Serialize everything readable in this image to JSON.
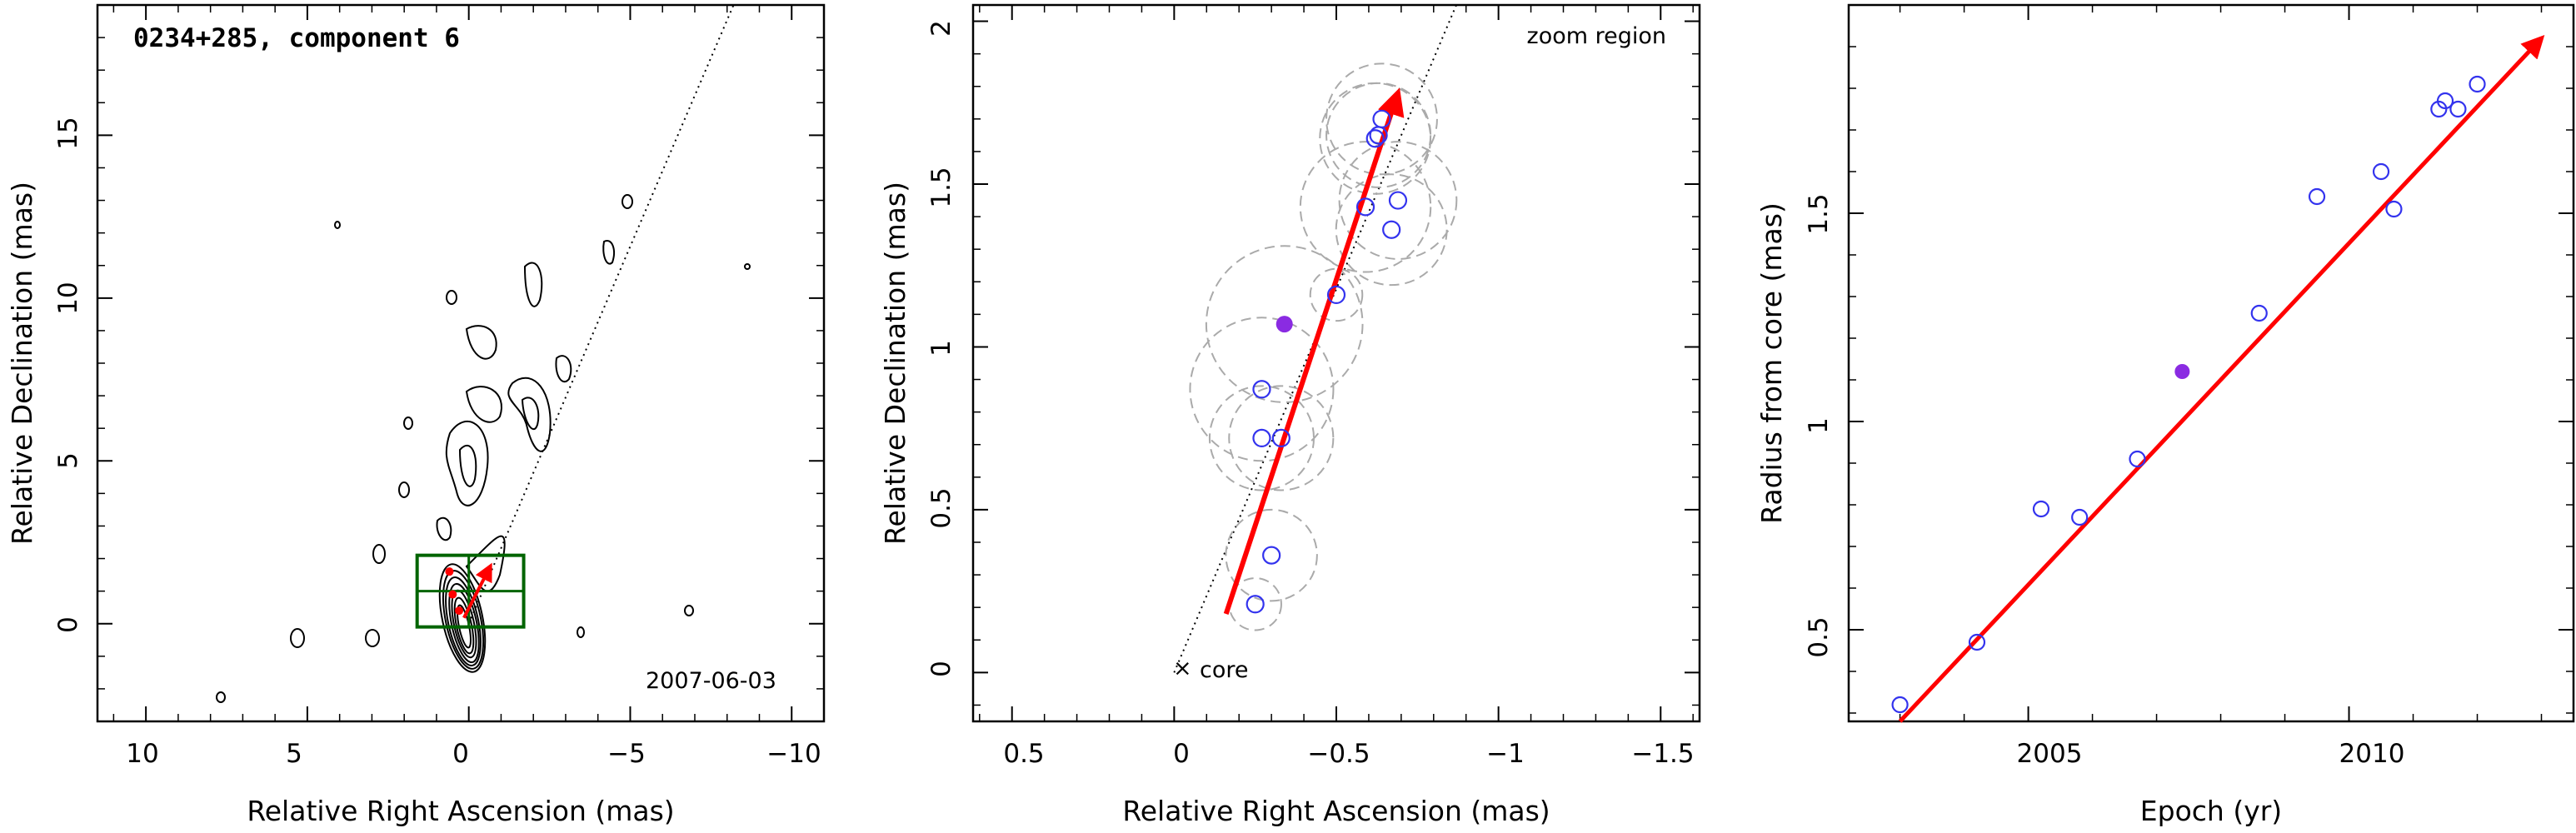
{
  "chart_data": [
    {
      "type": "scatter",
      "title": "0234+285, component 6",
      "date_label": "2007-06-03",
      "xlabel": "Relative Right Ascension (mas)",
      "ylabel": "Relative Declination (mas)",
      "xlim": [
        11.5,
        -11
      ],
      "ylim": [
        -3,
        19
      ],
      "x_ticks": [
        "10",
        "5",
        "0",
        "−5",
        "−10"
      ],
      "y_ticks": [
        "0",
        "5",
        "10",
        "15"
      ],
      "contour_map": true,
      "zoom_box": {
        "x": [
          1.6,
          -1.7
        ],
        "y": [
          -0.1,
          2.1
        ]
      },
      "trajectory_line": {
        "from": [
          0.0,
          0.0
        ],
        "to": [
          -8.2,
          19.0
        ]
      },
      "arrow": {
        "from": [
          0.15,
          0.18
        ],
        "to": [
          -0.67,
          1.77
        ],
        "color": "#ff0000"
      },
      "points": [
        {
          "x": 0.3,
          "y": 0.4
        },
        {
          "x": 0.5,
          "y": 0.9
        },
        {
          "x": 0.6,
          "y": 1.6
        }
      ]
    },
    {
      "type": "scatter",
      "annotation": "zoom region",
      "core_label": "core",
      "xlabel": "Relative Right Ascension (mas)",
      "ylabel": "Relative Declination (mas)",
      "xlim": [
        0.62,
        -1.62
      ],
      "ylim": [
        -0.15,
        2.05
      ],
      "x_ticks": [
        "0.5",
        "0",
        "−0.5",
        "−1",
        "−1.5"
      ],
      "y_ticks": [
        "0",
        "0.5",
        "1",
        "1.5",
        "2"
      ],
      "trajectory_line": {
        "from": [
          0.0,
          0.0
        ],
        "to": [
          -0.87,
          2.05
        ]
      },
      "arrow": {
        "from": [
          -0.16,
          0.18
        ],
        "to": [
          -0.69,
          1.78
        ],
        "color": "#ff0000"
      },
      "points": [
        {
          "x": -0.25,
          "y": 0.21,
          "r": 0.08
        },
        {
          "x": -0.3,
          "y": 0.36,
          "r": 0.14
        },
        {
          "x": -0.27,
          "y": 0.72,
          "r": 0.16
        },
        {
          "x": -0.33,
          "y": 0.72,
          "r": 0.16
        },
        {
          "x": -0.27,
          "y": 0.87,
          "r": 0.22
        },
        {
          "x": -0.5,
          "y": 1.16,
          "r": 0.08
        },
        {
          "x": -0.59,
          "y": 1.43,
          "r": 0.2
        },
        {
          "x": -0.67,
          "y": 1.36,
          "r": 0.17
        },
        {
          "x": -0.69,
          "y": 1.45,
          "r": 0.18
        },
        {
          "x": -0.62,
          "y": 1.64,
          "r": 0.17
        },
        {
          "x": -0.63,
          "y": 1.65,
          "r": 0.16
        },
        {
          "x": -0.64,
          "y": 1.7,
          "r": 0.17
        }
      ],
      "highlight_point": {
        "x": -0.34,
        "y": 1.07,
        "r": 0.24
      },
      "point_color": "#3333ee",
      "highlight_color": "#8a2be2"
    },
    {
      "type": "scatter",
      "xlabel": "Epoch (yr)",
      "ylabel": "Radius from core (mas)",
      "xlim": [
        2002.2,
        2013.5
      ],
      "ylim": [
        0.28,
        2.0
      ],
      "x_ticks": [
        "2005",
        "2010"
      ],
      "y_ticks": [
        "0.5",
        "1",
        "1.5"
      ],
      "fit_arrow": {
        "from": [
          2003.0,
          0.28
        ],
        "to": [
          2013.0,
          1.92
        ],
        "color": "#ff0000"
      },
      "points": [
        {
          "x": 2003.0,
          "y": 0.32
        },
        {
          "x": 2004.2,
          "y": 0.47
        },
        {
          "x": 2005.2,
          "y": 0.79
        },
        {
          "x": 2005.8,
          "y": 0.77
        },
        {
          "x": 2006.7,
          "y": 0.91
        },
        {
          "x": 2008.6,
          "y": 1.26
        },
        {
          "x": 2009.5,
          "y": 1.54
        },
        {
          "x": 2010.5,
          "y": 1.6
        },
        {
          "x": 2010.7,
          "y": 1.51
        },
        {
          "x": 2011.4,
          "y": 1.75
        },
        {
          "x": 2011.5,
          "y": 1.77
        },
        {
          "x": 2011.7,
          "y": 1.75
        },
        {
          "x": 2012.0,
          "y": 1.81
        }
      ],
      "highlight_point": {
        "x": 2007.4,
        "y": 1.12
      },
      "point_color": "#3333ee",
      "highlight_color": "#8a2be2"
    }
  ]
}
